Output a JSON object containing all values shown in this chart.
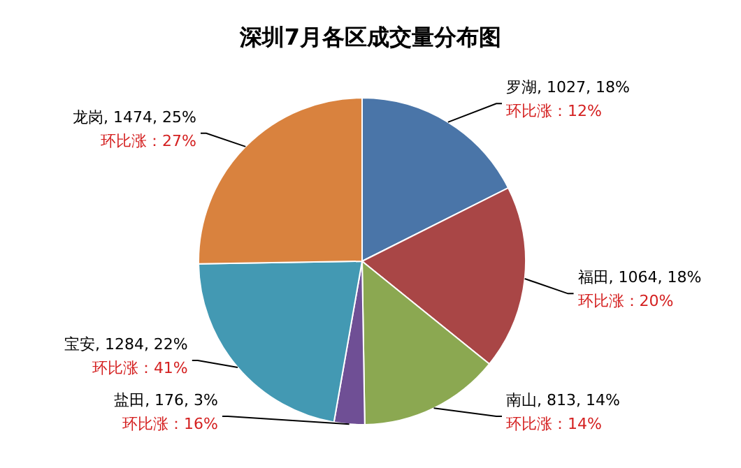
{
  "chart_data": {
    "type": "pie",
    "title": "深圳7月各区成交量分布图",
    "categories": [
      "罗湖",
      "福田",
      "南山",
      "盐田",
      "宝安",
      "龙岗"
    ],
    "values": [
      1027,
      1064,
      813,
      176,
      1284,
      1474
    ],
    "colors": [
      "#4a75a8",
      "#a94646",
      "#8ba851",
      "#6f4f95",
      "#4399b3",
      "#d9823e"
    ],
    "value_labels": [
      "1027, 18%",
      "1064, 18%",
      "813, 14%",
      "176, 3%",
      "1284, 22%",
      "1474, 25%"
    ],
    "annotations": [
      {
        "text": "环比涨：12%",
        "x": "罗湖"
      },
      {
        "text": "环比涨：20%",
        "x": "福田"
      },
      {
        "text": "环比涨：14%",
        "x": "南山"
      },
      {
        "text": "环比涨：16%",
        "x": "盐田"
      },
      {
        "text": "环比涨：41%",
        "x": "宝安"
      },
      {
        "text": "环比涨：27%",
        "x": "龙岗"
      }
    ]
  }
}
